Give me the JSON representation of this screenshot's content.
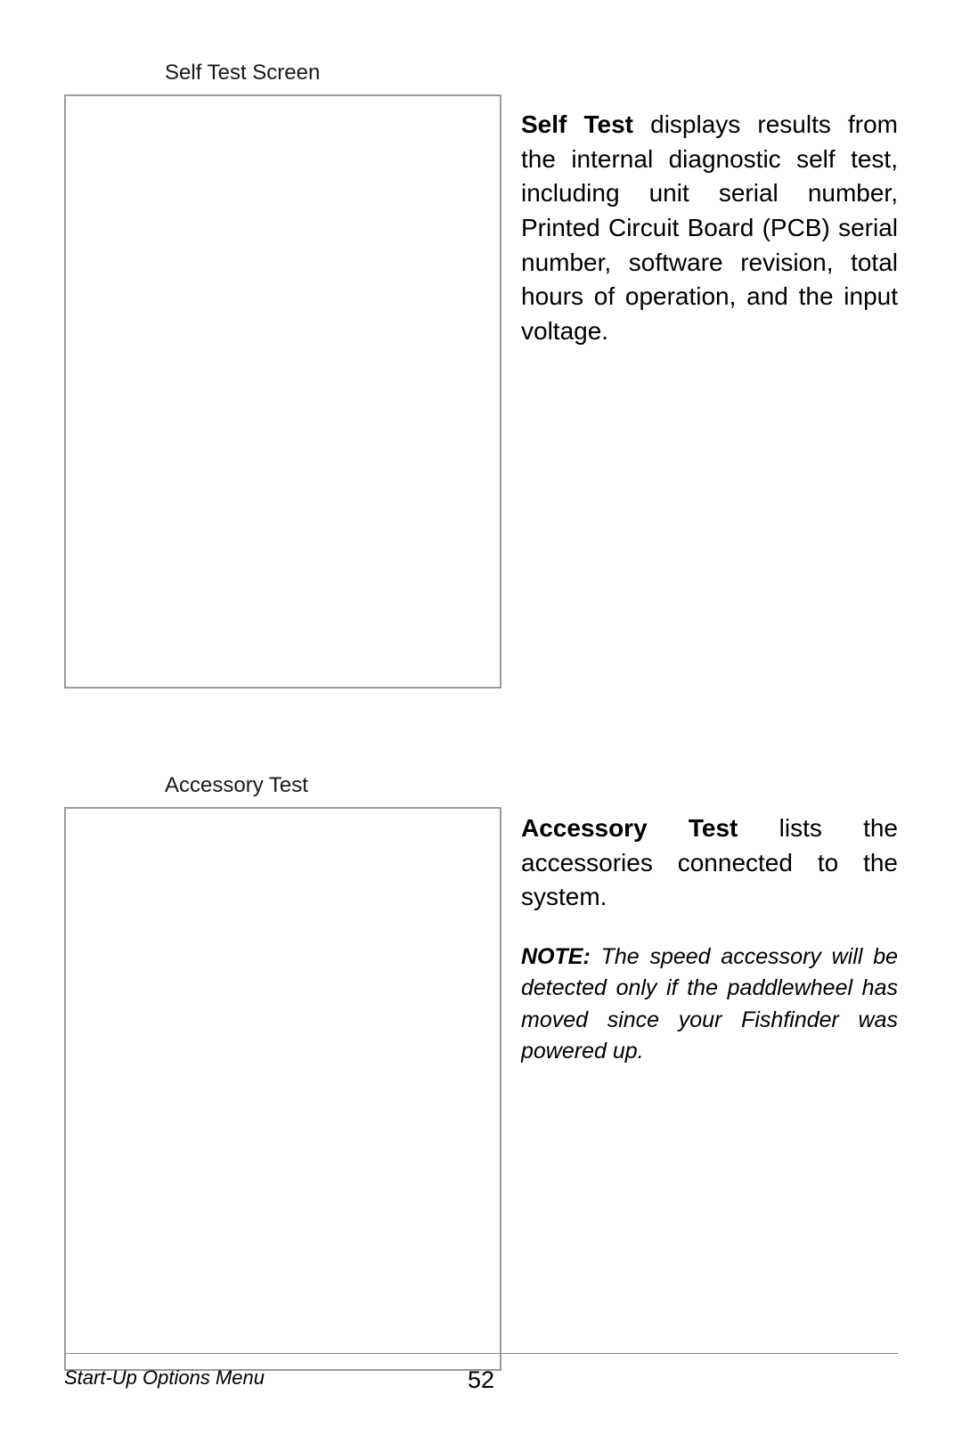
{
  "section1": {
    "imageLabel": "Self Test Screen",
    "boldLead": "Self Test",
    "description": " displays results from the internal diagnostic self test, including unit serial number, Printed Circuit Board (PCB) serial number, software revision, total hours of operation, and the input voltage."
  },
  "section2": {
    "imageLabel": "Accessory Test",
    "boldLead": "Accessory Test",
    "description": " lists the accessories connected to the system.",
    "noteLabel": "NOTE:",
    "noteText": " The speed accessory will be detected only if the paddlewheel has moved since your Fishfinder was powered up."
  },
  "footer": {
    "sectionName": "Start-Up Options Menu",
    "pageNumber": "52"
  }
}
